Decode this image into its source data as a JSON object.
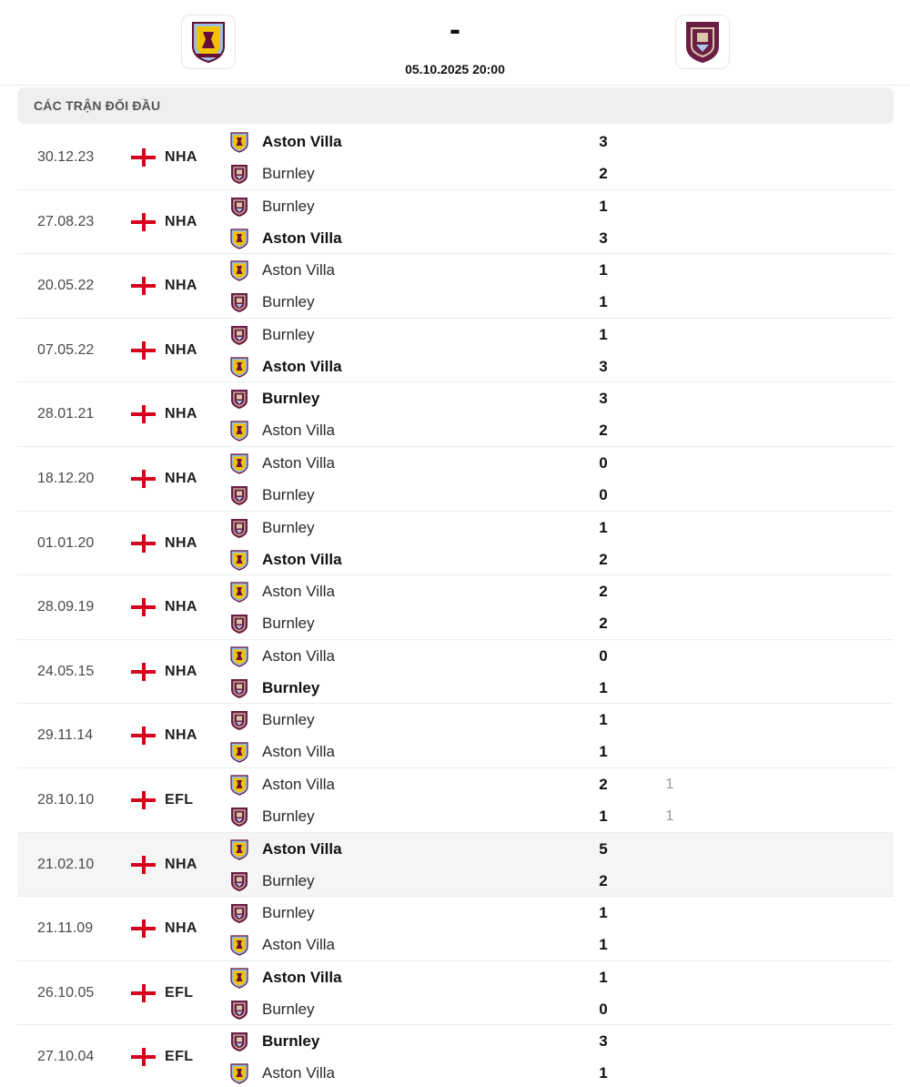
{
  "header": {
    "home_logo": "aston-villa-crest",
    "away_logo": "burnley-crest",
    "score": "-",
    "datetime": "05.10.2025 20:00"
  },
  "section_title": "CÁC TRẬN ĐỐI ĐẦU",
  "colors": {
    "villa_claret": "#670e36",
    "villa_blue": "#95bfe5",
    "villa_yellow": "#f2c200",
    "burnley_claret": "#6c1d45",
    "england_red": "#d6001c"
  },
  "matches": [
    {
      "date": "30.12.23",
      "league": "NHA",
      "team1": "Aston Villa",
      "team1_logo": "villa",
      "score1": "3",
      "team1_bold": true,
      "team2": "Burnley",
      "team2_logo": "burnley",
      "score2": "2",
      "team2_bold": false
    },
    {
      "date": "27.08.23",
      "league": "NHA",
      "team1": "Burnley",
      "team1_logo": "burnley",
      "score1": "1",
      "team1_bold": false,
      "team2": "Aston Villa",
      "team2_logo": "villa",
      "score2": "3",
      "team2_bold": true
    },
    {
      "date": "20.05.22",
      "league": "NHA",
      "team1": "Aston Villa",
      "team1_logo": "villa",
      "score1": "1",
      "team1_bold": false,
      "team2": "Burnley",
      "team2_logo": "burnley",
      "score2": "1",
      "team2_bold": false
    },
    {
      "date": "07.05.22",
      "league": "NHA",
      "team1": "Burnley",
      "team1_logo": "burnley",
      "score1": "1",
      "team1_bold": false,
      "team2": "Aston Villa",
      "team2_logo": "villa",
      "score2": "3",
      "team2_bold": true
    },
    {
      "date": "28.01.21",
      "league": "NHA",
      "team1": "Burnley",
      "team1_logo": "burnley",
      "score1": "3",
      "team1_bold": true,
      "team2": "Aston Villa",
      "team2_logo": "villa",
      "score2": "2",
      "team2_bold": false
    },
    {
      "date": "18.12.20",
      "league": "NHA",
      "team1": "Aston Villa",
      "team1_logo": "villa",
      "score1": "0",
      "team1_bold": false,
      "team2": "Burnley",
      "team2_logo": "burnley",
      "score2": "0",
      "team2_bold": false
    },
    {
      "date": "01.01.20",
      "league": "NHA",
      "team1": "Burnley",
      "team1_logo": "burnley",
      "score1": "1",
      "team1_bold": false,
      "team2": "Aston Villa",
      "team2_logo": "villa",
      "score2": "2",
      "team2_bold": true
    },
    {
      "date": "28.09.19",
      "league": "NHA",
      "team1": "Aston Villa",
      "team1_logo": "villa",
      "score1": "2",
      "team1_bold": false,
      "team2": "Burnley",
      "team2_logo": "burnley",
      "score2": "2",
      "team2_bold": false
    },
    {
      "date": "24.05.15",
      "league": "NHA",
      "team1": "Aston Villa",
      "team1_logo": "villa",
      "score1": "0",
      "team1_bold": false,
      "team2": "Burnley",
      "team2_logo": "burnley",
      "score2": "1",
      "team2_bold": true
    },
    {
      "date": "29.11.14",
      "league": "NHA",
      "team1": "Burnley",
      "team1_logo": "burnley",
      "score1": "1",
      "team1_bold": false,
      "team2": "Aston Villa",
      "team2_logo": "villa",
      "score2": "1",
      "team2_bold": false
    },
    {
      "date": "28.10.10",
      "league": "EFL",
      "team1": "Aston Villa",
      "team1_logo": "villa",
      "score1": "2",
      "extra1": "1",
      "team1_bold": false,
      "team2": "Burnley",
      "team2_logo": "burnley",
      "score2": "1",
      "extra2": "1",
      "team2_bold": false
    },
    {
      "date": "21.02.10",
      "league": "NHA",
      "team1": "Aston Villa",
      "team1_logo": "villa",
      "score1": "5",
      "team1_bold": true,
      "team2": "Burnley",
      "team2_logo": "burnley",
      "score2": "2",
      "team2_bold": false,
      "highlight": true
    },
    {
      "date": "21.11.09",
      "league": "NHA",
      "team1": "Burnley",
      "team1_logo": "burnley",
      "score1": "1",
      "team1_bold": false,
      "team2": "Aston Villa",
      "team2_logo": "villa",
      "score2": "1",
      "team2_bold": false
    },
    {
      "date": "26.10.05",
      "league": "EFL",
      "team1": "Aston Villa",
      "team1_logo": "villa",
      "score1": "1",
      "team1_bold": true,
      "team2": "Burnley",
      "team2_logo": "burnley",
      "score2": "0",
      "team2_bold": false
    },
    {
      "date": "27.10.04",
      "league": "EFL",
      "team1": "Burnley",
      "team1_logo": "burnley",
      "score1": "3",
      "team1_bold": true,
      "team2": "Aston Villa",
      "team2_logo": "villa",
      "score2": "1",
      "team2_bold": false
    }
  ]
}
